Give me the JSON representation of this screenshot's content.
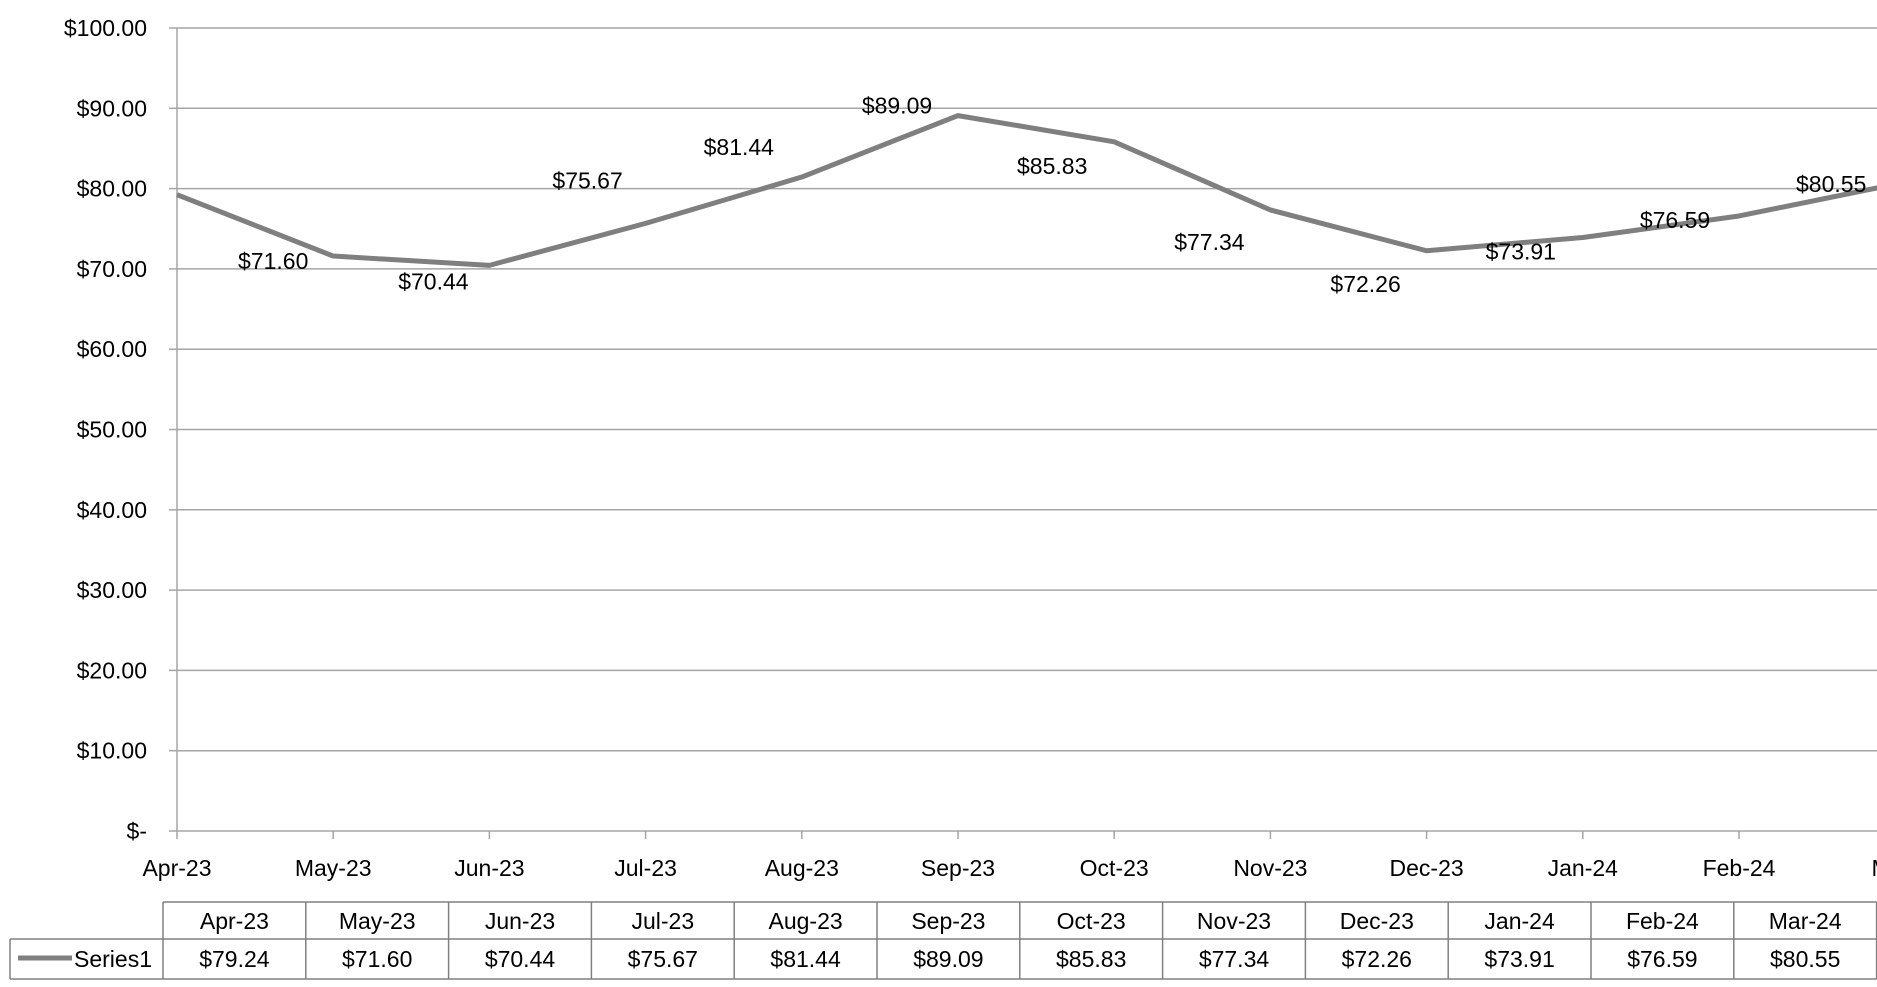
{
  "chart_data": {
    "type": "line",
    "categories": [
      "Apr-23",
      "May-23",
      "Jun-23",
      "Jul-23",
      "Aug-23",
      "Sep-23",
      "Oct-23",
      "Nov-23",
      "Dec-23",
      "Jan-24",
      "Feb-24",
      "Mar-24"
    ],
    "x_tick_labels": [
      "Apr-23",
      "May-23",
      "Jun-23",
      "Jul-23",
      "Aug-23",
      "Sep-23",
      "Oct-23",
      "Nov-23",
      "Dec-23",
      "Jan-24",
      "Feb-24",
      "Mar-"
    ],
    "series": [
      {
        "name": "Series1",
        "values": [
          79.24,
          71.6,
          70.44,
          75.67,
          81.44,
          89.09,
          85.83,
          77.34,
          72.26,
          73.91,
          76.59,
          80.55
        ],
        "data_labels": [
          "",
          "$71.60",
          "$70.44",
          "$75.67",
          "$81.44",
          "$89.09",
          "$85.83",
          "$77.34",
          "$72.26",
          "$73.91",
          "$76.59",
          "$80.55"
        ],
        "table_values": [
          "$79.24",
          "$71.60",
          "$70.44",
          "$75.67",
          "$81.44",
          "$89.09",
          "$85.83",
          "$77.34",
          "$72.26",
          "$73.91",
          "$76.59",
          "$80.55"
        ],
        "color": "#7f7f7f"
      }
    ],
    "y_tick_labels": [
      "$-",
      "$10.00",
      "$20.00",
      "$30.00",
      "$40.00",
      "$50.00",
      "$60.00",
      "$70.00",
      "$80.00",
      "$90.00",
      "$100.00"
    ],
    "ylim": [
      0,
      100
    ],
    "title": "",
    "xlabel": "",
    "ylabel": "",
    "grid": true,
    "data_table": true,
    "colors": {
      "gridline": "#a6a6a6",
      "axis": "#a6a6a6",
      "series": "#7f7f7f"
    }
  }
}
